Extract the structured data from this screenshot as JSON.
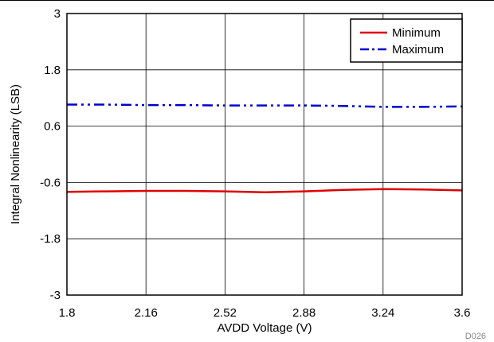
{
  "chart_data": {
    "type": "line",
    "title": "",
    "xlabel": "AVDD Voltage (V)",
    "ylabel": "Integral Nonlinearity (LSB)",
    "xlim": [
      1.8,
      3.6
    ],
    "ylim": [
      -3,
      3
    ],
    "x_ticks": [
      "1.8",
      "2.16",
      "2.52",
      "2.88",
      "3.24",
      "3.6"
    ],
    "y_ticks": [
      "3",
      "1.8",
      "0.6",
      "-0.6",
      "-1.8",
      "-3"
    ],
    "grid": true,
    "legend_position": "top-right",
    "figure_id": "D026",
    "series": [
      {
        "name": "Minimum",
        "color": "#e00000",
        "style": "solid",
        "x": [
          1.8,
          1.98,
          2.16,
          2.34,
          2.52,
          2.7,
          2.88,
          3.06,
          3.24,
          3.42,
          3.6
        ],
        "y": [
          -0.8,
          -0.79,
          -0.78,
          -0.78,
          -0.79,
          -0.81,
          -0.79,
          -0.76,
          -0.74,
          -0.75,
          -0.77
        ]
      },
      {
        "name": "Maximum",
        "color": "#0000d0",
        "style": "dash-dot-dot",
        "x": [
          1.8,
          1.98,
          2.16,
          2.34,
          2.52,
          2.7,
          2.88,
          3.06,
          3.24,
          3.42,
          3.6
        ],
        "y": [
          1.06,
          1.06,
          1.05,
          1.05,
          1.04,
          1.04,
          1.04,
          1.03,
          1.01,
          1.01,
          1.02
        ]
      }
    ]
  }
}
